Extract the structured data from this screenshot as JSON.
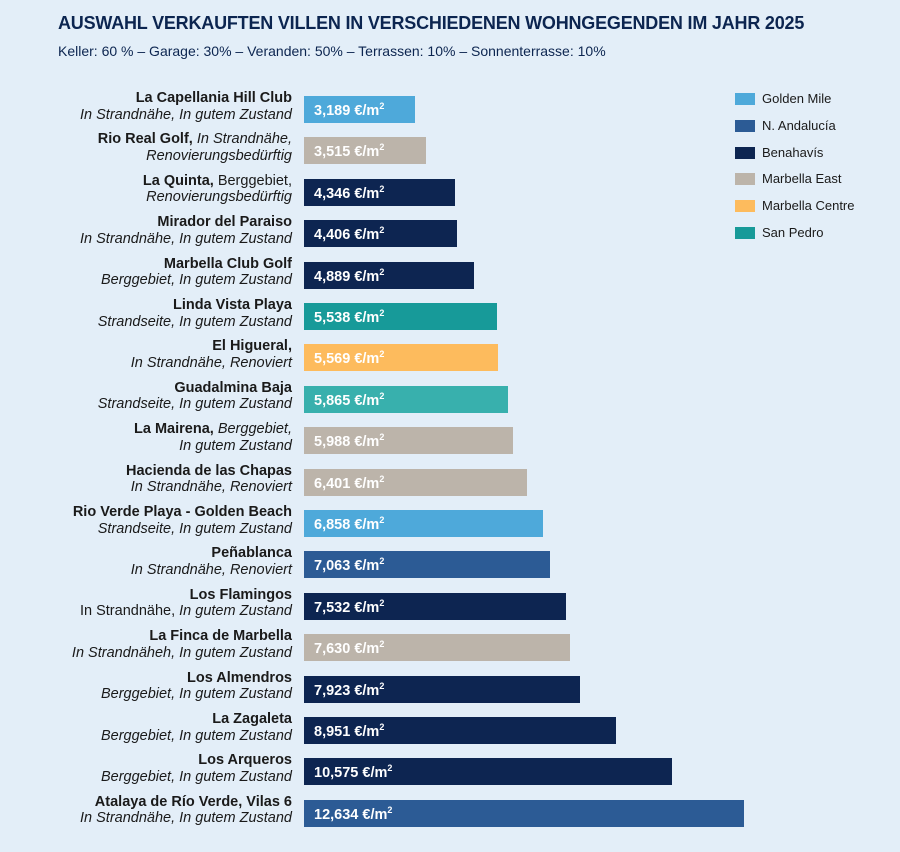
{
  "title": "AUSWAHL VERKAUFTEN VILLEN IN VERSCHIEDENEN WOHNGEGENDEN IM JAHR 2025",
  "subtitle": "Keller: 60 % – Garage: 30% – Veranden: 50% – Terrassen: 10% – Sonnenterrasse: 10%",
  "chart_data": {
    "type": "bar",
    "orientation": "horizontal",
    "title": "AUSWAHL VERKAUFTEN VILLEN IN VERSCHIEDENEN WOHNGEGENDEN IM JAHR 2025",
    "unit": "€/m²",
    "grid": false,
    "legend_position": "top-right",
    "legend": [
      {
        "name": "Golden Mile",
        "color": "#4ea9da"
      },
      {
        "name": "N. Andalucía",
        "color": "#2c5b95"
      },
      {
        "name": "Benahavís",
        "color": "#0d2551"
      },
      {
        "name": "Marbella East",
        "color": "#bcb4aa"
      },
      {
        "name": "Marbella Centre",
        "color": "#fdbb5d"
      },
      {
        "name": "San Pedro",
        "color": "#179a99"
      }
    ],
    "rows": [
      {
        "line1": [
          {
            "t": "La Capellania Hill Club",
            "s": "b"
          }
        ],
        "line2": [
          {
            "t": "In Strandnähe, In gutem Zustand",
            "s": "i"
          }
        ],
        "value": 3189,
        "value_label": "3,189 €/m",
        "area": "Golden Mile",
        "color": "#4ea9da"
      },
      {
        "line1": [
          {
            "t": "Rio Real Golf,",
            "s": "b"
          },
          {
            "t": " In Strandnähe,",
            "s": "i"
          }
        ],
        "line2": [
          {
            "t": "Renovierungsbedürftig",
            "s": "i"
          }
        ],
        "value": 3515,
        "value_label": "3,515 €/m",
        "area": "Marbella East",
        "color": "#bcb4aa"
      },
      {
        "line1": [
          {
            "t": "La Quinta,",
            "s": "b"
          },
          {
            "t": " Berggebiet,",
            "s": "r"
          }
        ],
        "line2": [
          {
            "t": "Renovierungsbedürftig",
            "s": "i"
          }
        ],
        "value": 4346,
        "value_label": "4,346 €/m",
        "area": "Benahavís",
        "color": "#0d2551"
      },
      {
        "line1": [
          {
            "t": "Mirador del Paraiso",
            "s": "b"
          }
        ],
        "line2": [
          {
            "t": "In Strandnähe, In gutem Zustand",
            "s": "i"
          }
        ],
        "value": 4406,
        "value_label": "4,406 €/m",
        "area": "Benahavís",
        "color": "#0d2551"
      },
      {
        "line1": [
          {
            "t": "Marbella Club Golf",
            "s": "b"
          }
        ],
        "line2": [
          {
            "t": "Berggebiet, In gutem Zustand",
            "s": "i"
          }
        ],
        "value": 4889,
        "value_label": "4,889 €/m",
        "area": "Benahavís",
        "color": "#0d2551"
      },
      {
        "line1": [
          {
            "t": "Linda Vista Playa",
            "s": "b"
          }
        ],
        "line2": [
          {
            "t": "Strandseite, In gutem Zustand",
            "s": "i"
          }
        ],
        "value": 5538,
        "value_label": "5,538 €/m",
        "area": "San Pedro",
        "color": "#179a99"
      },
      {
        "line1": [
          {
            "t": "El Higueral,",
            "s": "b"
          }
        ],
        "line2": [
          {
            "t": "In Strandnähe, Renoviert",
            "s": "i"
          }
        ],
        "value": 5569,
        "value_label": "5,569 €/m",
        "area": "Marbella Centre",
        "color": "#fdbb5d"
      },
      {
        "line1": [
          {
            "t": "Guadalmina Baja",
            "s": "b"
          }
        ],
        "line2": [
          {
            "t": "Strandseite, In gutem Zustand",
            "s": "i"
          }
        ],
        "value": 5865,
        "value_label": "5,865 €/m",
        "area": "San Pedro",
        "color": "#38b0ad"
      },
      {
        "line1": [
          {
            "t": "La Mairena,",
            "s": "b"
          },
          {
            "t": " Berggebiet,",
            "s": "i"
          }
        ],
        "line2": [
          {
            "t": "In gutem Zustand",
            "s": "i"
          }
        ],
        "value": 5988,
        "value_label": "5,988 €/m",
        "area": "Marbella East",
        "color": "#bcb4aa"
      },
      {
        "line1": [
          {
            "t": "Hacienda de las Chapas",
            "s": "b"
          }
        ],
        "line2": [
          {
            "t": "In Strandnähe, Renoviert",
            "s": "i"
          }
        ],
        "value": 6401,
        "value_label": "6,401 €/m",
        "area": "Marbella East",
        "color": "#bcb4aa"
      },
      {
        "line1": [
          {
            "t": "Rio Verde Playa - Golden Beach",
            "s": "b"
          }
        ],
        "line2": [
          {
            "t": "Strandseite, In gutem Zustand",
            "s": "i"
          }
        ],
        "value": 6858,
        "value_label": "6,858 €/m",
        "area": "Golden Mile",
        "color": "#4ea9da"
      },
      {
        "line1": [
          {
            "t": "Peñablanca",
            "s": "b"
          }
        ],
        "line2": [
          {
            "t": "In Strandnähe, Renoviert",
            "s": "i"
          }
        ],
        "value": 7063,
        "value_label": "7,063 €/m",
        "area": "N. Andalucía",
        "color": "#2c5b95"
      },
      {
        "line1": [
          {
            "t": "Los Flamingos",
            "s": "b"
          }
        ],
        "line2": [
          {
            "t": "In Strandnähe, ",
            "s": "r"
          },
          {
            "t": "In gutem Zustand",
            "s": "i"
          }
        ],
        "value": 7532,
        "value_label": "7,532 €/m",
        "area": "Benahavís",
        "color": "#0d2551"
      },
      {
        "line1": [
          {
            "t": "La Finca de Marbella",
            "s": "b"
          }
        ],
        "line2": [
          {
            "t": "In Strandnäheh, In gutem Zustand",
            "s": "i"
          }
        ],
        "value": 7630,
        "value_label": "7,630 €/m",
        "area": "Marbella East",
        "color": "#bcb4aa"
      },
      {
        "line1": [
          {
            "t": "Los Almendros",
            "s": "b"
          }
        ],
        "line2": [
          {
            "t": "Berggebiet, In gutem Zustand",
            "s": "i"
          }
        ],
        "value": 7923,
        "value_label": "7,923 €/m",
        "area": "Benahavís",
        "color": "#0d2551"
      },
      {
        "line1": [
          {
            "t": "La Zagaleta",
            "s": "b"
          }
        ],
        "line2": [
          {
            "t": "Berggebiet, In gutem Zustand",
            "s": "i"
          }
        ],
        "value": 8951,
        "value_label": "8,951 €/m",
        "area": "Benahavís",
        "color": "#0d2551"
      },
      {
        "line1": [
          {
            "t": "Los Arqueros",
            "s": "b"
          }
        ],
        "line2": [
          {
            "t": "Berggebiet, In gutem Zustand",
            "s": "i"
          }
        ],
        "value": 10575,
        "value_label": "10,575 €/m",
        "area": "Benahavís",
        "color": "#0d2551"
      },
      {
        "line1": [
          {
            "t": "Atalaya de Río Verde, Vilas 6",
            "s": "b"
          }
        ],
        "line2": [
          {
            "t": "In Strandnähe, In gutem Zustand",
            "s": "i"
          }
        ],
        "value": 12634,
        "value_label": "12,634 €/m",
        "area": "N. Andalucía",
        "color": "#2c5b95"
      }
    ],
    "unit_superscript": "2"
  }
}
